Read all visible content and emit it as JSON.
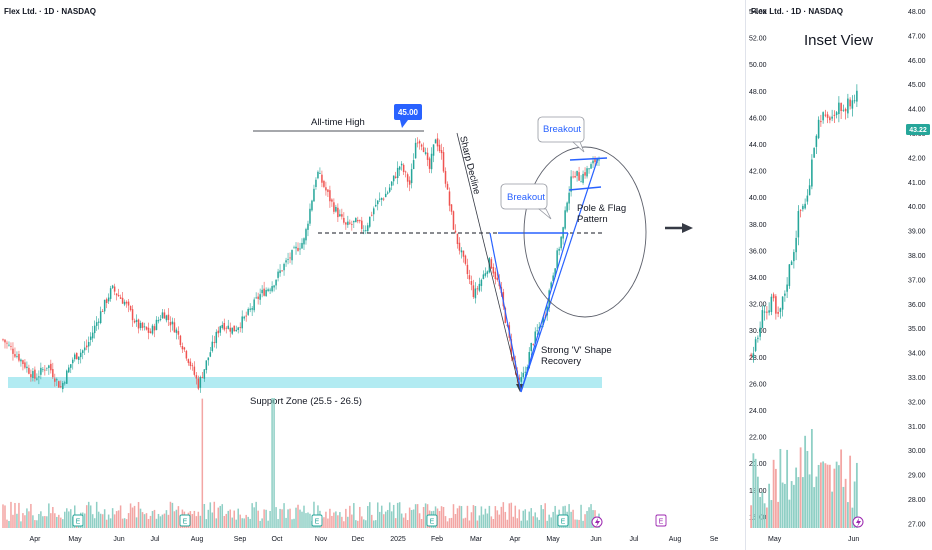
{
  "colors": {
    "up": "#26a69a",
    "down": "#ef5350",
    "vol_up": "#8fcfc5",
    "vol_down": "#f3a6a4",
    "support": "#b2ebf2",
    "trend": "#2962ff",
    "ath_badge": "#2962ff",
    "price_badge": "#26a69a",
    "arrow": "#363a45"
  },
  "icons": [
    "earnings-icon",
    "dividend-flash-icon",
    "arrow-right-icon"
  ],
  "main_chart": {
    "title": "Flex Ltd. · 1D · NASDAQ",
    "x_labels": [
      "Apr",
      "May",
      "Jun",
      "Jul",
      "Aug",
      "Sep",
      "Oct",
      "Nov",
      "Dec",
      "2025",
      "Feb",
      "Mar",
      "Apr",
      "May",
      "Jun",
      "Jul",
      "Aug",
      "Se"
    ],
    "earnings_markers": [
      "E",
      "E",
      "E",
      "E",
      "E",
      "E",
      "E"
    ],
    "annotations": {
      "ath_label": "All-time High",
      "ath_value": "45.00",
      "sharp_decline": "Sharp Decline",
      "breakout_1": "Breakout",
      "breakout_2": "Breakout",
      "pole_flag_line1": "Pole & Flag",
      "pole_flag_line2": "Pattern",
      "v_shape_line1": "Strong 'V' Shape",
      "v_shape_line2": "Recovery",
      "support_zone": "Support Zone (25.5 - 26.5)"
    }
  },
  "inset_chart": {
    "title": "Flex Ltd. · 1D · NASDAQ",
    "heading": "Inset View",
    "x_labels": [
      "May",
      "Jun"
    ],
    "current_price": "43.22",
    "left_axis": [
      "54.00",
      "52.00",
      "50.00",
      "48.00",
      "46.00",
      "44.00",
      "42.00",
      "40.00",
      "38.00",
      "36.00",
      "34.00",
      "32.00",
      "30.00",
      "28.00",
      "26.00",
      "24.00",
      "22.00",
      "20.00",
      "18.00",
      "16.00"
    ],
    "right_axis": [
      "48.00",
      "47.00",
      "46.00",
      "45.00",
      "44.00",
      "43.00",
      "42.00",
      "41.00",
      "40.00",
      "39.00",
      "38.00",
      "37.00",
      "36.00",
      "35.00",
      "34.00",
      "33.00",
      "32.00",
      "31.00",
      "30.00",
      "29.00",
      "28.00",
      "27.00"
    ]
  },
  "chart_data": [
    {
      "type": "candlestick",
      "title": "Flex Ltd. · 1D · NASDAQ",
      "x_range": [
        "2024-03-28",
        "2025-09-05"
      ],
      "y_range": [
        22,
        48
      ],
      "support_zone": [
        25.5,
        26.5
      ],
      "all_time_high": 45.0,
      "breakout_level": 37.5,
      "price_path": [
        [
          0,
          29.8
        ],
        [
          5,
          28.5
        ],
        [
          10,
          27.0
        ],
        [
          14,
          28.0
        ],
        [
          18,
          26.3
        ],
        [
          22,
          28.5
        ],
        [
          26,
          29.2
        ],
        [
          30,
          31.5
        ],
        [
          34,
          33.5
        ],
        [
          38,
          32.5
        ],
        [
          42,
          30.8
        ],
        [
          46,
          30.3
        ],
        [
          50,
          31.8
        ],
        [
          54,
          30.5
        ],
        [
          58,
          28.3
        ],
        [
          61,
          26.5
        ],
        [
          64,
          28.5
        ],
        [
          68,
          31.0
        ],
        [
          72,
          30.5
        ],
        [
          76,
          31.5
        ],
        [
          80,
          33.0
        ],
        [
          84,
          33.8
        ],
        [
          88,
          35.3
        ],
        [
          92,
          36.5
        ],
        [
          94,
          37.0
        ],
        [
          96,
          39.5
        ],
        [
          98,
          42.0
        ],
        [
          100,
          41.0
        ],
        [
          103,
          39.5
        ],
        [
          107,
          38.0
        ],
        [
          110,
          38.3
        ],
        [
          113,
          37.8
        ],
        [
          116,
          39.5
        ],
        [
          120,
          40.5
        ],
        [
          124,
          42.5
        ],
        [
          127,
          41.0
        ],
        [
          129,
          44.5
        ],
        [
          131,
          44.0
        ],
        [
          133,
          42.0
        ],
        [
          135,
          44.5
        ],
        [
          137,
          43.0
        ],
        [
          139,
          40.0
        ],
        [
          141,
          37.5
        ],
        [
          143,
          36.0
        ],
        [
          145,
          34.5
        ],
        [
          147,
          33.0
        ],
        [
          149,
          34.0
        ],
        [
          152,
          35.5
        ],
        [
          155,
          33.5
        ],
        [
          157,
          31.0
        ],
        [
          159,
          28.5
        ],
        [
          161,
          26.5
        ],
        [
          163,
          27.5
        ],
        [
          165,
          29.5
        ],
        [
          167,
          30.5
        ],
        [
          169,
          31.5
        ],
        [
          171,
          34.0
        ],
        [
          173,
          36.0
        ],
        [
          175,
          38.0
        ],
        [
          176,
          40.0
        ],
        [
          178,
          42.0
        ],
        [
          180,
          41.5
        ],
        [
          182,
          42.0
        ],
        [
          184,
          42.5
        ],
        [
          186,
          43.2
        ]
      ],
      "volume_spikes": [
        [
          62,
          14.0
        ],
        [
          84,
          28.0
        ]
      ]
    },
    {
      "type": "candlestick",
      "title": "Flex Ltd. · 1D · NASDAQ",
      "x_range": [
        "2025-04-01",
        "2025-06-05"
      ],
      "y_range": [
        26,
        54
      ],
      "price_path": [
        [
          0,
          27.5
        ],
        [
          3,
          28.5
        ],
        [
          6,
          30.5
        ],
        [
          8,
          30.0
        ],
        [
          10,
          31.0
        ],
        [
          12,
          29.5
        ],
        [
          14,
          30.5
        ],
        [
          16,
          31.5
        ],
        [
          18,
          33.0
        ],
        [
          20,
          34.0
        ],
        [
          22,
          36.0
        ],
        [
          24,
          36.5
        ],
        [
          26,
          37.0
        ],
        [
          27,
          37.5
        ],
        [
          29,
          40.0
        ],
        [
          31,
          41.5
        ],
        [
          33,
          42.0
        ],
        [
          35,
          41.5
        ],
        [
          37,
          42.0
        ],
        [
          39,
          41.5
        ],
        [
          41,
          42.5
        ],
        [
          43,
          42.0
        ],
        [
          45,
          43.0
        ],
        [
          46,
          42.5
        ],
        [
          48,
          43.0
        ],
        [
          49,
          43.5
        ]
      ],
      "current_price": 43.22
    }
  ]
}
